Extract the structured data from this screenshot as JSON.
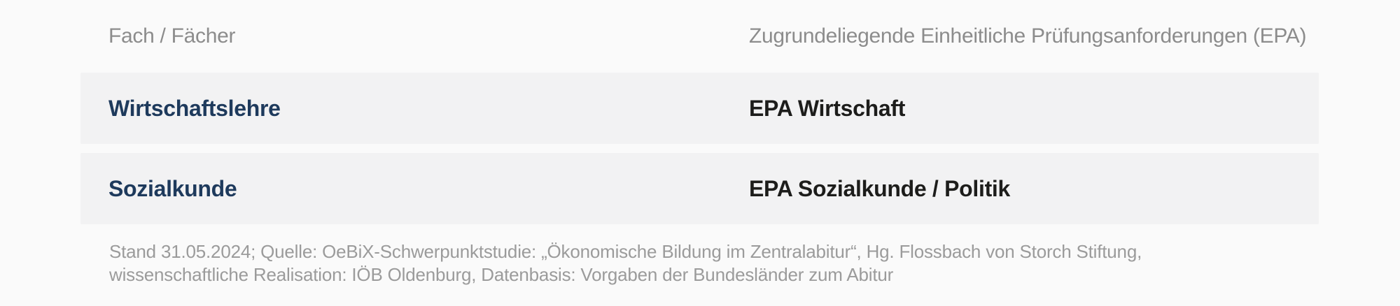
{
  "theme": {
    "page_bg": "#fafafa",
    "row_bg": "#f2f2f3",
    "column_header_color": "#8c8c8c",
    "subject_color": "#1e3a5c",
    "epa_color": "#1d1d1b",
    "footnote_color": "#9b9b9b"
  },
  "table": {
    "columns": [
      {
        "label": "Fach / Fächer"
      },
      {
        "label": "Zugrundeliegende Einheitliche Prüfungsanforderungen (EPA)"
      }
    ],
    "rows": [
      {
        "subject": "Wirtschaftslehre",
        "epa": "EPA Wirtschaft"
      },
      {
        "subject": "Sozialkunde",
        "epa": "EPA Sozialkunde / Politik"
      }
    ]
  },
  "footnote": {
    "line1": "Stand 31.05.2024; Quelle: OeBiX-Schwerpunktstudie: „Ökonomische Bildung im Zentralabitur“, Hg. Flossbach von Storch Stiftung,",
    "line2": "wissenschaftliche Realisation: IÖB Oldenburg, Datenbasis: Vorgaben der Bundesländer zum Abitur"
  }
}
